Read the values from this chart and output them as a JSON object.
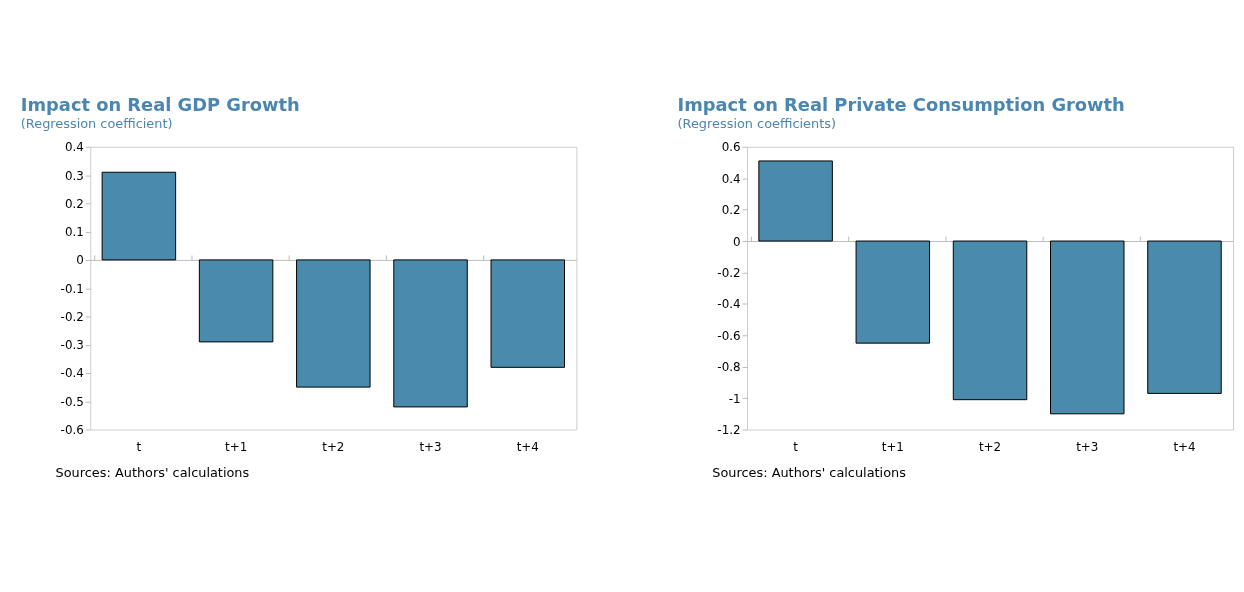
{
  "chart_data": [
    {
      "type": "bar",
      "title": "Impact on Real GDP Growth",
      "subtitle": "(Regression coefficient)",
      "categories": [
        "t",
        "t+1",
        "t+2",
        "t+3",
        "t+4"
      ],
      "values": [
        0.31,
        -0.29,
        -0.45,
        -0.52,
        -0.38
      ],
      "color": "#4a8aad",
      "ylim": [
        -0.6,
        0.4
      ],
      "yticks": [
        -0.6,
        -0.5,
        -0.4,
        -0.3,
        -0.2,
        -0.1,
        0,
        0.1,
        0.2,
        0.3,
        0.4
      ],
      "annotations": [
        "Sources: Authors' calculations"
      ]
    },
    {
      "type": "bar",
      "title": "Impact on Real Private Consumption Growth",
      "subtitle": "(Regression coefficients)",
      "categories": [
        "t",
        "t+1",
        "t+2",
        "t+3",
        "t+4"
      ],
      "values": [
        0.51,
        -0.65,
        -1.01,
        -1.1,
        -0.97
      ],
      "color": "#4a8aad",
      "ylim": [
        -1.2,
        0.6
      ],
      "yticks": [
        -1.2,
        -1,
        -0.8,
        -0.6,
        -0.4,
        -0.2,
        0,
        0.2,
        0.4,
        0.6
      ],
      "annotations": [
        "Sources: Authors' calculations"
      ]
    }
  ]
}
